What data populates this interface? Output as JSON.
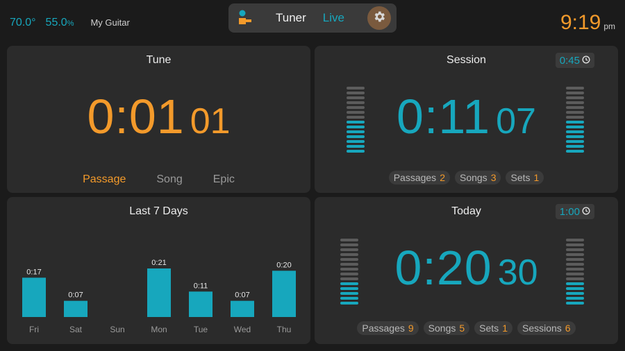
{
  "env": {
    "temperature": "70.0°",
    "humidity": "55.0",
    "humidity_unit": "%",
    "instrument": "My Guitar"
  },
  "nav": {
    "tab_tuner": "Tuner",
    "tab_live": "Live",
    "settings_icon": "gear-icon",
    "app_icon": "practice-app-icon"
  },
  "clock": {
    "time": "9:19",
    "ampm": "pm"
  },
  "tune": {
    "title": "Tune",
    "time_main": "0:01",
    "time_sub": "01",
    "modes": [
      "Passage",
      "Song",
      "Epic"
    ],
    "active_mode": "Passage"
  },
  "session": {
    "title": "Session",
    "timer": "0:45",
    "time_main": "0:11",
    "time_sub": "07",
    "meter_level_fraction": 0.5,
    "stats": [
      {
        "label": "Passages",
        "value": "2"
      },
      {
        "label": "Songs",
        "value": "3"
      },
      {
        "label": "Sets",
        "value": "1"
      }
    ]
  },
  "today": {
    "title": "Today",
    "timer": "1:00",
    "time_main": "0:20",
    "time_sub": "30",
    "meter_level_fraction": 0.36,
    "stats": [
      {
        "label": "Passages",
        "value": "9"
      },
      {
        "label": "Songs",
        "value": "5"
      },
      {
        "label": "Sets",
        "value": "1"
      },
      {
        "label": "Sessions",
        "value": "6"
      }
    ]
  },
  "last7": {
    "title": "Last 7 Days"
  },
  "chart_data": {
    "type": "bar",
    "categories": [
      "Fri",
      "Sat",
      "Sun",
      "Mon",
      "Tue",
      "Wed",
      "Thu"
    ],
    "values": [
      17,
      7,
      0,
      21,
      11,
      7,
      20
    ],
    "data_labels": [
      "0:17",
      "0:07",
      "",
      "0:21",
      "0:11",
      "0:07",
      "0:20"
    ],
    "title": "Last 7 Days",
    "xlabel": "",
    "ylabel": "",
    "ylim": [
      0,
      21
    ],
    "grid": false,
    "bar_color": "#17a7bd"
  },
  "colors": {
    "accent_teal": "#17a7bd",
    "accent_orange": "#f39a2b",
    "panel": "#2b2b2b",
    "background": "#1b1b1b"
  }
}
